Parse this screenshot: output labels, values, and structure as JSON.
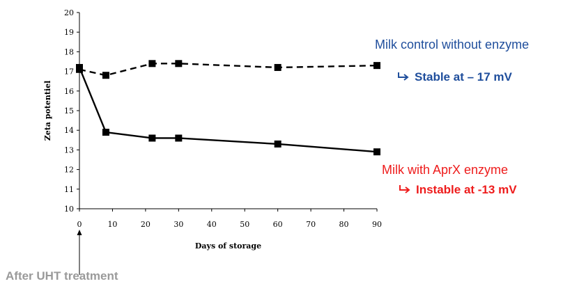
{
  "chart_data": {
    "type": "line",
    "xlabel": "Days of storage",
    "ylabel": "Zeta potentiel",
    "xlim": [
      0,
      90
    ],
    "ylim": [
      10,
      20
    ],
    "xticks": [
      0,
      10,
      20,
      30,
      40,
      50,
      60,
      70,
      80,
      90
    ],
    "yticks": [
      10,
      11,
      12,
      13,
      14,
      15,
      16,
      17,
      18,
      19,
      20
    ],
    "grid": false,
    "series": [
      {
        "name": "Milk control without enzyme",
        "style": "dashed",
        "color": "#000000",
        "x": [
          0,
          8,
          22,
          30,
          60,
          90
        ],
        "y": [
          17.1,
          16.8,
          17.4,
          17.4,
          17.2,
          17.3
        ]
      },
      {
        "name": "Milk with AprX enzyme",
        "style": "solid",
        "color": "#000000",
        "x": [
          0,
          8,
          22,
          30,
          60,
          90
        ],
        "y": [
          17.2,
          13.9,
          13.6,
          13.6,
          13.3,
          12.9
        ]
      }
    ],
    "annotations": {
      "control_label": "Milk control without enzyme",
      "control_note": "Stable at – 17 mV",
      "aprx_label": "Milk with AprX enzyme",
      "aprx_note": "Instable at -13 mV",
      "uht_label": "After UHT treatment"
    },
    "colors": {
      "control": "#1f4e9c",
      "aprx": "#ee1c1c",
      "uht": "#9a9a9a"
    }
  }
}
